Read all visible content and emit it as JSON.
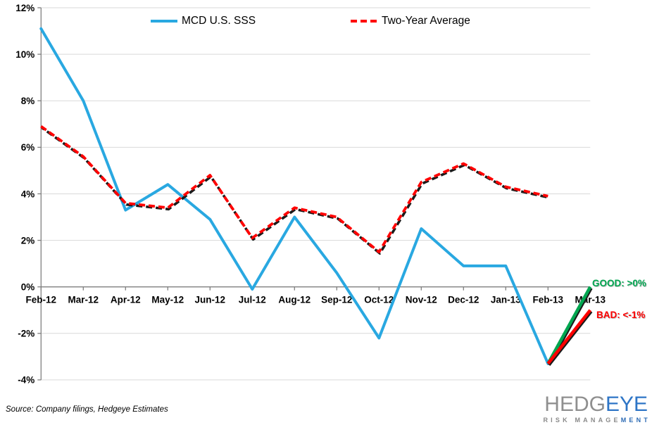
{
  "colors": {
    "blue": "#29A8E1",
    "red": "#FF0000",
    "green": "#00A650",
    "gridline": "#D9D9D9",
    "axis": "#808080",
    "shadow": "#1a1a1a"
  },
  "chart_data": {
    "type": "line",
    "title": "",
    "xlabel": "",
    "ylabel": "",
    "ylim": [
      -4,
      12
    ],
    "grid": true,
    "legend_position": "top",
    "ytick_values": [
      12,
      10,
      8,
      6,
      4,
      2,
      0,
      -2,
      -4
    ],
    "ytick_labels": [
      "12%",
      "10%",
      "8%",
      "6%",
      "4%",
      "2%",
      "0%",
      "-2%",
      "-4%"
    ],
    "categories": [
      "Feb-12",
      "Mar-12",
      "Apr-12",
      "May-12",
      "Jun-12",
      "Jul-12",
      "Aug-12",
      "Sep-12",
      "Oct-12",
      "Nov-12",
      "Dec-12",
      "Jan-13",
      "Feb-13",
      "Mar-13"
    ],
    "series": [
      {
        "name": "MCD U.S. SSS",
        "color": "#29A8E1",
        "line_style": "solid",
        "values": [
          11.1,
          8.0,
          3.3,
          4.4,
          2.9,
          -0.1,
          3.0,
          0.6,
          -2.2,
          2.5,
          0.9,
          0.9,
          -3.3,
          null
        ]
      },
      {
        "name": "Two-Year Average",
        "color": "#FF0000",
        "line_style": "dashed",
        "values": [
          6.9,
          5.6,
          3.6,
          3.4,
          4.8,
          2.1,
          3.4,
          3.0,
          1.5,
          4.5,
          5.3,
          4.3,
          3.9,
          null
        ]
      }
    ],
    "scenarios": [
      {
        "label": "GOOD: >0%",
        "color": "#00A650",
        "from_category": "Feb-13",
        "from_value": -3.3,
        "to_category": "Mar-13",
        "to_value": 0.0
      },
      {
        "label": "BAD: <-1%",
        "color": "#FF0000",
        "from_category": "Feb-13",
        "from_value": -3.3,
        "to_category": "Mar-13",
        "to_value": -1.0
      }
    ]
  },
  "footer": {
    "source": "Source: Company filings, Hedgeye Estimates"
  },
  "logo": {
    "main_gray": "HEDG",
    "main_blue": "EYE",
    "sub_gray": "RISK MANAGE",
    "sub_blue": "MENT"
  }
}
